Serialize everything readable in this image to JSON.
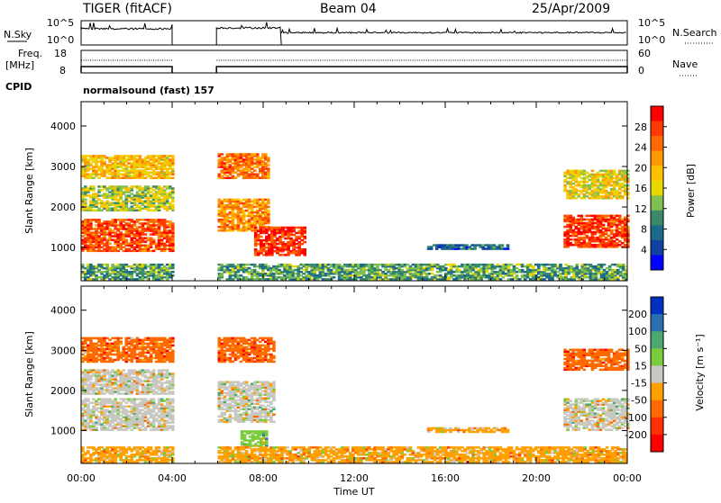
{
  "header": {
    "radar": "TIGER (fitACF)",
    "beam": "Beam 04",
    "date": "25/Apr/2009"
  },
  "top_panels": {
    "nsky_label": "N.Sky",
    "nsky_ticks": [
      "10^5",
      "10^0"
    ],
    "nsearch_label": "N.Search",
    "nsearch_ticks": [
      "10^5",
      "10^0"
    ],
    "freq_label_1": "Freq.",
    "freq_label_2": "[MHz]",
    "freq_ticks": [
      "18",
      "8"
    ],
    "nave_label": "Nave",
    "nave_ticks": [
      "60",
      "0"
    ],
    "cpid_label": "CPID",
    "cpid_value": "normalsound (fast) 157"
  },
  "axes": {
    "ylabel": "Slant Range [km]",
    "yticks": [
      "4000",
      "3000",
      "2000",
      "1000"
    ],
    "xticks": [
      "00:00",
      "04:00",
      "08:00",
      "12:00",
      "16:00",
      "20:00",
      "00:00"
    ],
    "xlabel": "Time UT"
  },
  "colorbars": {
    "power": {
      "label": "Power [dB]",
      "ticks": [
        "28",
        "24",
        "20",
        "16",
        "12",
        "8",
        "4"
      ],
      "colors": [
        "#ff0000",
        "#ff3a00",
        "#ff6a00",
        "#ff9a00",
        "#ffc000",
        "#e6d800",
        "#7fc050",
        "#3a8a6a",
        "#1b6a8a",
        "#1040a0",
        "#0000ff"
      ]
    },
    "velocity": {
      "label": "Velocity [m s⁻¹]",
      "ticks": [
        "200",
        "100",
        "50",
        "15",
        "-15",
        "-50",
        "-100",
        "-200"
      ],
      "colors": [
        "#0030c0",
        "#2a70b0",
        "#4aa870",
        "#7acc3a",
        "#c8c8c0",
        "#ffa000",
        "#ff6a00",
        "#ff3000",
        "#ff0000"
      ]
    }
  },
  "chart_data": [
    {
      "type": "heatmap",
      "title": "",
      "xlabel": "Time UT",
      "ylabel": "Slant Range [km]",
      "colorbar_label": "Power [dB]",
      "xlim": [
        0,
        24
      ],
      "ylim": [
        180,
        4600
      ],
      "data_gap_hours": [
        [
          4.0,
          5.95
        ]
      ],
      "bands": [
        {
          "t0": 0.0,
          "t1": 4.0,
          "r0": 900,
          "r1": 1700,
          "value": 26
        },
        {
          "t0": 0.0,
          "t1": 4.0,
          "r0": 1900,
          "r1": 2500,
          "value": 14
        },
        {
          "t0": 0.0,
          "t1": 4.0,
          "r0": 2700,
          "r1": 3250,
          "value": 18
        },
        {
          "t0": 6.0,
          "t1": 8.2,
          "r0": 1400,
          "r1": 2200,
          "value": 22
        },
        {
          "t0": 6.0,
          "t1": 8.2,
          "r0": 2700,
          "r1": 3300,
          "value": 24
        },
        {
          "t0": 7.6,
          "t1": 9.8,
          "r0": 800,
          "r1": 1500,
          "value": 28
        },
        {
          "t0": 15.2,
          "t1": 18.8,
          "r0": 950,
          "r1": 1050,
          "value": 6
        },
        {
          "t0": 21.2,
          "t1": 24.0,
          "r0": 1000,
          "r1": 1800,
          "value": 27
        },
        {
          "t0": 21.2,
          "t1": 24.0,
          "r0": 2200,
          "r1": 2900,
          "value": 16
        },
        {
          "t0": 0.0,
          "t1": 24.0,
          "r0": 200,
          "r1": 600,
          "value": 10
        }
      ]
    },
    {
      "type": "heatmap",
      "title": "",
      "xlabel": "Time UT",
      "ylabel": "Slant Range [km]",
      "colorbar_label": "Velocity [m s⁻¹]",
      "xlim": [
        0,
        24
      ],
      "ylim": [
        180,
        4600
      ],
      "data_gap_hours": [
        [
          4.0,
          5.95
        ]
      ],
      "bands": [
        {
          "t0": 0.0,
          "t1": 4.0,
          "r0": 1000,
          "r1": 1800,
          "value": 0
        },
        {
          "t0": 0.0,
          "t1": 4.0,
          "r0": 1900,
          "r1": 2500,
          "value": 0
        },
        {
          "t0": 0.0,
          "t1": 4.0,
          "r0": 2700,
          "r1": 3300,
          "value": -150
        },
        {
          "t0": 6.0,
          "t1": 8.4,
          "r0": 1200,
          "r1": 2200,
          "value": 0
        },
        {
          "t0": 7.0,
          "t1": 8.2,
          "r0": 600,
          "r1": 1000,
          "value": 60
        },
        {
          "t0": 6.0,
          "t1": 8.4,
          "r0": 2700,
          "r1": 3300,
          "value": -150
        },
        {
          "t0": 15.2,
          "t1": 18.8,
          "r0": 950,
          "r1": 1050,
          "value": -40
        },
        {
          "t0": 21.2,
          "t1": 24.0,
          "r0": 1000,
          "r1": 1800,
          "value": 0
        },
        {
          "t0": 21.2,
          "t1": 24.0,
          "r0": 2500,
          "r1": 3000,
          "value": -150
        },
        {
          "t0": 0.0,
          "t1": 24.0,
          "r0": 200,
          "r1": 600,
          "value": -40
        }
      ]
    }
  ]
}
